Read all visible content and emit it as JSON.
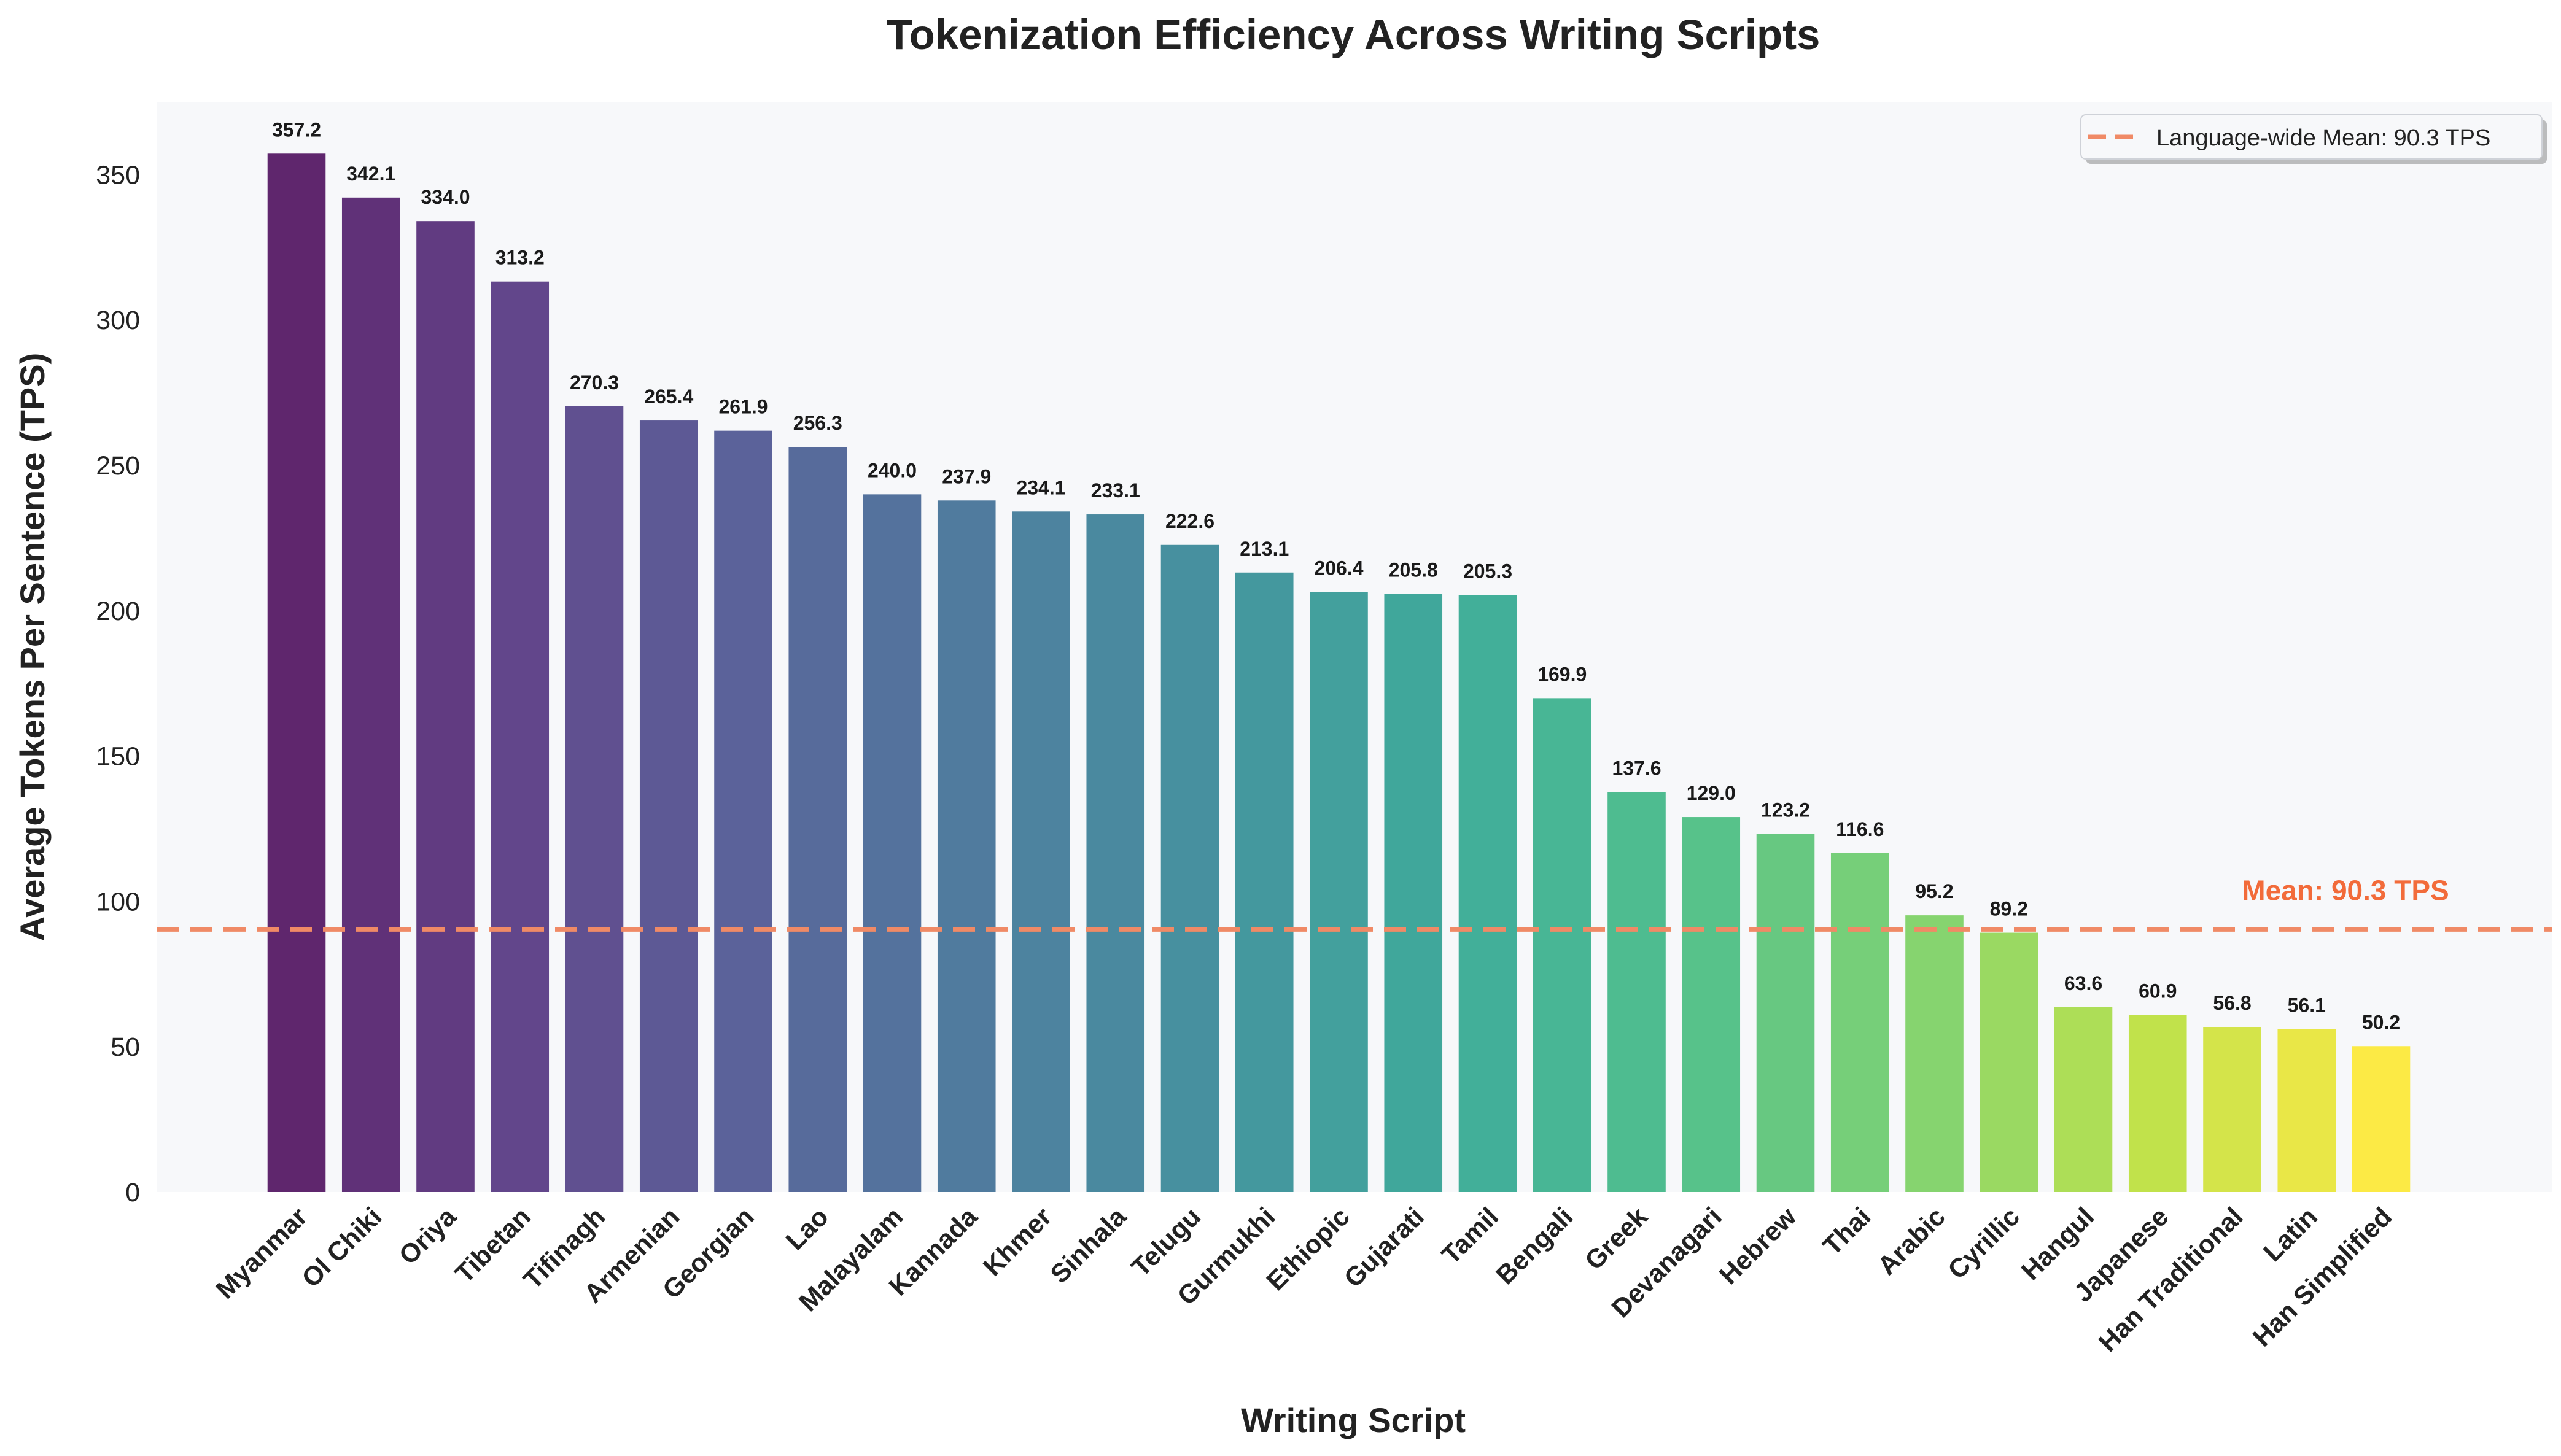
{
  "chart_data": {
    "type": "bar",
    "title": "Tokenization Efficiency Across Writing Scripts",
    "xlabel": "Writing Script",
    "ylabel": "Average Tokens Per Sentence (TPS)",
    "ylim": [
      0,
      375
    ],
    "yticks": [
      0,
      50,
      100,
      150,
      200,
      250,
      300,
      350
    ],
    "grid": false,
    "legend_position": "top-right",
    "categories": [
      "Myanmar",
      "Ol Chiki",
      "Oriya",
      "Tibetan",
      "Tifinagh",
      "Armenian",
      "Georgian",
      "Lao",
      "Malayalam",
      "Kannada",
      "Khmer",
      "Sinhala",
      "Telugu",
      "Gurmukhi",
      "Ethiopic",
      "Gujarati",
      "Tamil",
      "Bengali",
      "Greek",
      "Devanagari",
      "Hebrew",
      "Thai",
      "Arabic",
      "Cyrillic",
      "Hangul",
      "Japanese",
      "Han Traditional",
      "Latin",
      "Han Simplified"
    ],
    "values": [
      357.2,
      342.1,
      334.0,
      313.2,
      270.3,
      265.4,
      261.9,
      256.3,
      240.0,
      237.9,
      234.1,
      233.1,
      222.6,
      213.1,
      206.4,
      205.8,
      205.3,
      169.9,
      137.6,
      129.0,
      123.2,
      116.6,
      95.2,
      89.2,
      63.6,
      60.9,
      56.8,
      56.1,
      50.2
    ],
    "value_labels": [
      "357.2",
      "342.1",
      "334.0",
      "313.2",
      "270.3",
      "265.4",
      "261.9",
      "256.3",
      "240.0",
      "237.9",
      "234.1",
      "233.1",
      "222.6",
      "213.1",
      "206.4",
      "205.8",
      "205.3",
      "169.9",
      "137.6",
      "129.0",
      "123.2",
      "116.6",
      "95.2",
      "89.2",
      "63.6",
      "60.9",
      "56.8",
      "56.1",
      "50.2"
    ],
    "mean": {
      "value": 90.3,
      "label": "Mean: 90.3 TPS",
      "legend_label": "Language-wide Mean: 90.3 TPS"
    },
    "colormap": "viridis",
    "bar_alpha": 0.85
  },
  "colors": {
    "plot_background": "#f7f8fa",
    "mean_line": "#f08a66",
    "mean_text": "#f26b3a"
  }
}
